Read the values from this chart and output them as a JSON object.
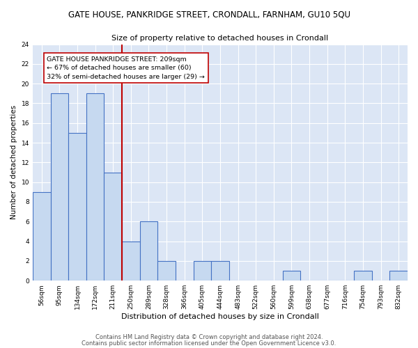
{
  "title": "GATE HOUSE, PANKRIDGE STREET, CRONDALL, FARNHAM, GU10 5QU",
  "subtitle": "Size of property relative to detached houses in Crondall",
  "xlabel": "Distribution of detached houses by size in Crondall",
  "ylabel": "Number of detached properties",
  "categories": [
    "56sqm",
    "95sqm",
    "134sqm",
    "172sqm",
    "211sqm",
    "250sqm",
    "289sqm",
    "328sqm",
    "366sqm",
    "405sqm",
    "444sqm",
    "483sqm",
    "522sqm",
    "560sqm",
    "599sqm",
    "638sqm",
    "677sqm",
    "716sqm",
    "754sqm",
    "793sqm",
    "832sqm"
  ],
  "values": [
    9,
    19,
    15,
    19,
    11,
    4,
    6,
    2,
    0,
    2,
    2,
    0,
    0,
    0,
    1,
    0,
    0,
    0,
    1,
    0,
    1
  ],
  "bar_color": "#c6d9f0",
  "bar_edge_color": "#4472c4",
  "bar_edge_width": 0.8,
  "marker_index": 4,
  "marker_label": "GATE HOUSE PANKRIDGE STREET: 209sqm\n← 67% of detached houses are smaller (60)\n32% of semi-detached houses are larger (29) →",
  "marker_line_color": "#c00000",
  "annotation_box_color": "#ffffff",
  "annotation_box_edge": "#c00000",
  "ylim": [
    0,
    24
  ],
  "yticks": [
    0,
    2,
    4,
    6,
    8,
    10,
    12,
    14,
    16,
    18,
    20,
    22,
    24
  ],
  "bg_color": "#dce6f5",
  "footer1": "Contains HM Land Registry data © Crown copyright and database right 2024.",
  "footer2": "Contains public sector information licensed under the Open Government Licence v3.0.",
  "title_fontsize": 8.5,
  "subtitle_fontsize": 8.0,
  "xlabel_fontsize": 8.0,
  "ylabel_fontsize": 7.5,
  "tick_fontsize": 6.5,
  "footer_fontsize": 6.0,
  "annot_fontsize": 6.8
}
